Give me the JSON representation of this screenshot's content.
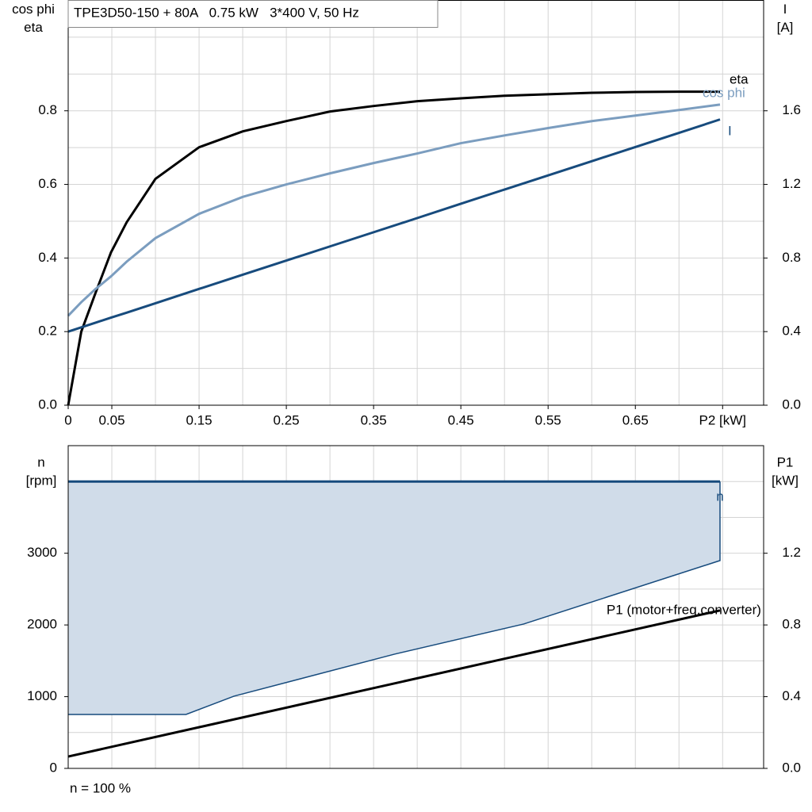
{
  "chart_data": [
    {
      "type": "line",
      "title": "TPE3D50-150 + 80A   0.75 kW   3*400 V, 50 Hz",
      "ylabel": [
        "cos phi",
        "eta"
      ],
      "y2label": [
        "I",
        "[A]"
      ],
      "xlim": [
        0,
        0.797
      ],
      "xticks": [
        0,
        0.05,
        0.15,
        0.25,
        0.35,
        0.45,
        0.55,
        0.65,
        {
          "value": 0.75,
          "label": "P2 [kW]"
        }
      ],
      "xgrid": [
        0.05,
        0.1,
        0.15,
        0.2,
        0.25,
        0.3,
        0.35,
        0.4,
        0.45,
        0.5,
        0.55,
        0.6,
        0.65,
        0.7,
        0.75
      ],
      "ylim": [
        0,
        1.1
      ],
      "yticks": [
        {
          "value": 0,
          "label": "0.0"
        },
        0.2,
        0.4,
        0.6,
        0.8
      ],
      "ygrid": [
        0.1,
        0.2,
        0.3,
        0.4,
        0.5,
        0.6,
        0.7,
        0.8,
        0.9,
        1.0
      ],
      "y2lim": [
        0,
        2.2
      ],
      "y2ticks": [
        {
          "value": 0,
          "label": "0.0"
        },
        0.4,
        0.8,
        1.2,
        1.6
      ],
      "grid": true,
      "x": [
        0,
        0.015,
        0.031,
        0.049,
        0.067,
        0.1,
        0.15,
        0.2,
        0.25,
        0.3,
        0.35,
        0.4,
        0.45,
        0.5,
        0.55,
        0.6,
        0.65,
        0.7,
        0.747
      ],
      "series": [
        {
          "name": "eta",
          "color": "#000000",
          "values": [
            0,
            0.2,
            0.303,
            0.415,
            0.497,
            0.615,
            0.701,
            0.744,
            0.772,
            0.798,
            0.813,
            0.826,
            0.834,
            0.841,
            0.845,
            0.849,
            0.851,
            0.852,
            0.852
          ]
        },
        {
          "name": "cos phi",
          "color": "#7b9dbf",
          "values": [
            0.243,
            0.28,
            0.315,
            0.35,
            0.39,
            0.454,
            0.52,
            0.566,
            0.6,
            0.63,
            0.658,
            0.684,
            0.712,
            0.733,
            0.753,
            0.772,
            0.787,
            0.802,
            0.817
          ]
        },
        {
          "name": "I",
          "color": "#174b7d",
          "axis": "y2",
          "values": [
            0.4,
            0.423,
            0.448,
            0.476,
            0.503,
            0.554,
            0.632,
            0.709,
            0.786,
            0.863,
            0.94,
            1.017,
            1.095,
            1.172,
            1.249,
            1.326,
            1.403,
            1.48,
            1.553
          ]
        }
      ]
    },
    {
      "type": "area",
      "ylabel": [
        "n",
        "[rpm]"
      ],
      "y2label": [
        "P1",
        "[kW]"
      ],
      "annotation": "n = 100 %",
      "xlim": [
        0,
        0.797
      ],
      "xgrid": [
        0.05,
        0.1,
        0.15,
        0.2,
        0.25,
        0.3,
        0.35,
        0.4,
        0.45,
        0.5,
        0.55,
        0.6,
        0.65,
        0.7,
        0.75
      ],
      "ylim": [
        0,
        4500
      ],
      "yticks": [
        0,
        1000,
        2000,
        3000
      ],
      "ygrid": [
        500,
        1000,
        1500,
        2000,
        2500,
        3000,
        3500,
        4000
      ],
      "y2lim": [
        0,
        1.8
      ],
      "y2ticks": [
        {
          "value": 0,
          "label": "0.0"
        },
        0.4,
        0.8,
        1.2
      ],
      "grid": true,
      "series": [
        {
          "name": "n",
          "color": "#174b7d",
          "fill": "#d0dce9",
          "x": [
            0,
            0.135,
            0.19,
            0.374,
            0.522,
            0.747
          ],
          "upper": [
            4000,
            4000,
            4000,
            4000,
            4000,
            4000
          ],
          "lower": [
            752,
            752,
            1007,
            1593,
            2013,
            2898
          ]
        },
        {
          "name": "P1 (motor+freq.converter)",
          "color": "#000000",
          "axis": "y2",
          "x": [
            0,
            0.747
          ],
          "values": [
            0.066,
            0.881
          ]
        }
      ]
    }
  ]
}
